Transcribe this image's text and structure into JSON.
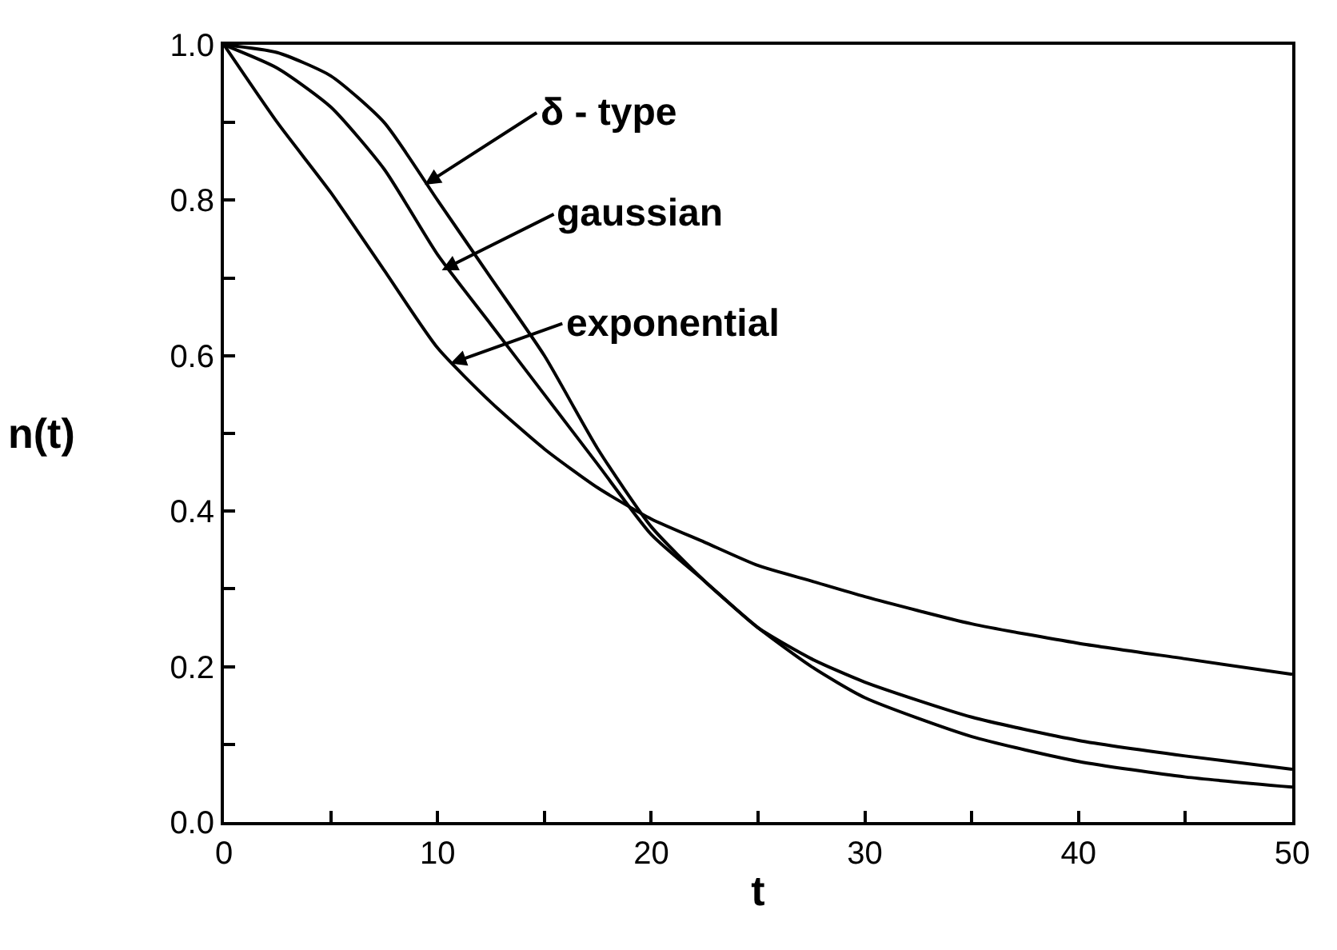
{
  "chart_data": {
    "type": "line",
    "x": [
      0,
      2.5,
      5,
      7.5,
      10,
      12.5,
      15,
      17.5,
      20,
      22.5,
      25,
      27.5,
      30,
      35,
      40,
      45,
      50
    ],
    "series": [
      {
        "color": "#000000",
        "values": [
          1.0,
          0.99,
          0.96,
          0.9,
          0.8,
          0.7,
          0.6,
          0.48,
          0.38,
          0.31,
          0.25,
          0.2,
          0.16,
          0.11,
          0.078,
          0.058,
          0.045
        ]
      },
      {
        "color": "#000000",
        "values": [
          1.0,
          0.97,
          0.92,
          0.84,
          0.73,
          0.64,
          0.55,
          0.46,
          0.37,
          0.31,
          0.25,
          0.21,
          0.18,
          0.135,
          0.105,
          0.085,
          0.068
        ]
      },
      {
        "color": "#000000",
        "values": [
          1.0,
          0.9,
          0.81,
          0.71,
          0.61,
          0.54,
          0.48,
          0.43,
          0.39,
          0.36,
          0.33,
          0.31,
          0.29,
          0.255,
          0.23,
          0.21,
          0.19
        ]
      }
    ],
    "xlabel": "t",
    "ylabel": "n(t)",
    "xlim": [
      0,
      50
    ],
    "ylim": [
      0,
      1
    ],
    "xticks": [
      0,
      {
        "value": 5,
        "label": null
      },
      10,
      {
        "value": 15,
        "label": null
      },
      20,
      {
        "value": 25,
        "label": null
      },
      30,
      {
        "value": 35,
        "label": null
      },
      40,
      {
        "value": 45,
        "label": null
      },
      50
    ],
    "yticks": [
      "0.0",
      {
        "value": 0.1,
        "label": null
      },
      0.2,
      {
        "value": 0.3,
        "label": null
      },
      0.4,
      {
        "value": 0.5,
        "label": null
      },
      0.6,
      {
        "value": 0.7,
        "label": null
      },
      0.8,
      {
        "value": 0.9,
        "label": null
      },
      "1.0"
    ],
    "annotations": [
      {
        "text": "δ - type",
        "x": 9.4,
        "y": 0.82
      },
      {
        "text": "gaussian",
        "x": 10.2,
        "y": 0.71
      },
      {
        "text": "exponential",
        "x": 10.6,
        "y": 0.59
      }
    ],
    "marker": "none",
    "line_style": "solid"
  }
}
